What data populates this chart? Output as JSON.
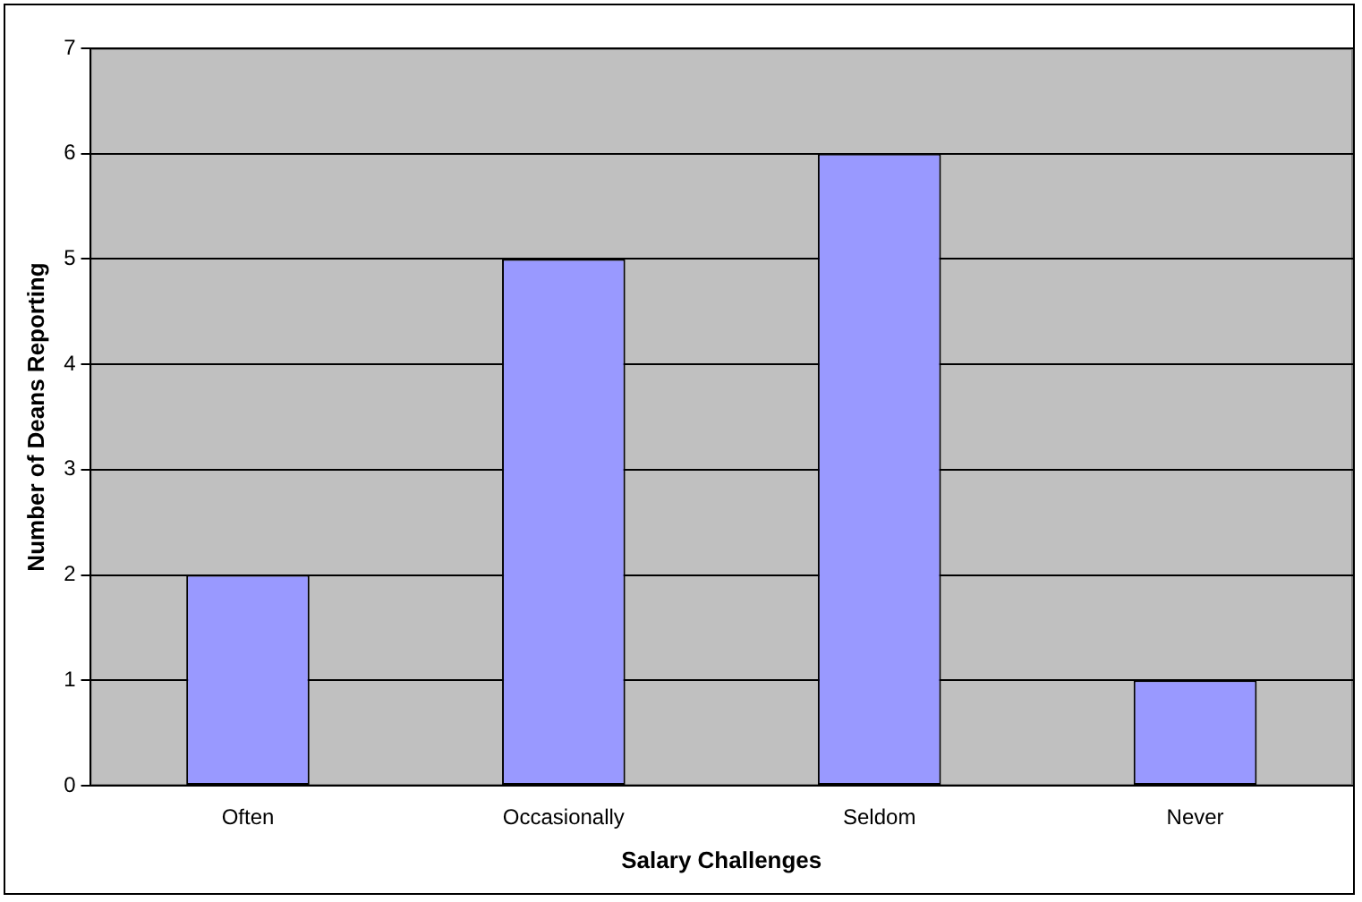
{
  "chart_data": {
    "type": "bar",
    "xlabel": "Salary Challenges",
    "ylabel": "Number of Deans Reporting",
    "categories": [
      "Often",
      "Occasionally",
      "Seldom",
      "Never"
    ],
    "series": [
      {
        "color": "#9999ff",
        "values": [
          2,
          5,
          6,
          1
        ]
      }
    ],
    "ylim": [
      0,
      7
    ],
    "yticks": [
      0,
      1,
      2,
      3,
      4,
      5,
      6,
      7
    ],
    "grid": "y",
    "legend": false
  }
}
